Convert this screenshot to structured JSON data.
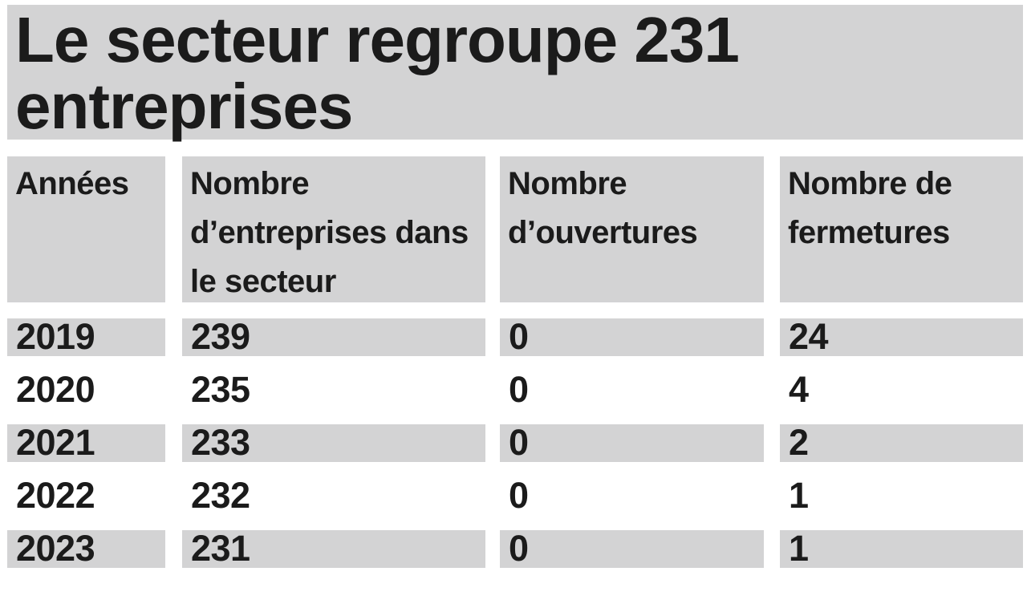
{
  "title": {
    "lines": [
      "Le secteur regroupe 231",
      "entreprises"
    ],
    "full_text": "Le secteur regroupe 231 entreprises"
  },
  "table": {
    "headers": [
      "Années",
      "Nombre d’entreprises dans le secteur",
      "Nombre d’ouvertures",
      "Nombre de fermetures"
    ],
    "rows": [
      {
        "cells": [
          "2019",
          "239",
          "0",
          "24"
        ],
        "shaded": true
      },
      {
        "cells": [
          "2020",
          "235",
          "0",
          "4"
        ],
        "shaded": false
      },
      {
        "cells": [
          "2021",
          "233",
          "0",
          "2"
        ],
        "shaded": true
      },
      {
        "cells": [
          "2022",
          "232",
          "0",
          "1"
        ],
        "shaded": false
      },
      {
        "cells": [
          "2023",
          "231",
          "0",
          "1"
        ],
        "shaded": true
      }
    ]
  },
  "colors": {
    "band_gray": "#d3d3d4",
    "text_ink": "#1b1b1b",
    "page_background": "#ffffff"
  },
  "chart_data": {
    "type": "table",
    "title": "Le secteur regroupe 231 entreprises",
    "columns": [
      "Années",
      "Nombre d’entreprises dans le secteur",
      "Nombre d’ouvertures",
      "Nombre de fermetures"
    ],
    "rows": [
      [
        "2019",
        239,
        0,
        24
      ],
      [
        "2020",
        235,
        0,
        4
      ],
      [
        "2021",
        233,
        0,
        2
      ],
      [
        "2022",
        232,
        0,
        1
      ],
      [
        "2023",
        231,
        0,
        1
      ]
    ],
    "layout": {
      "zebra_striping": "gray bands on title, header row and odd data rows (2019, 2021, 2023)",
      "column_gutters": "white vertical gaps between columns"
    }
  }
}
